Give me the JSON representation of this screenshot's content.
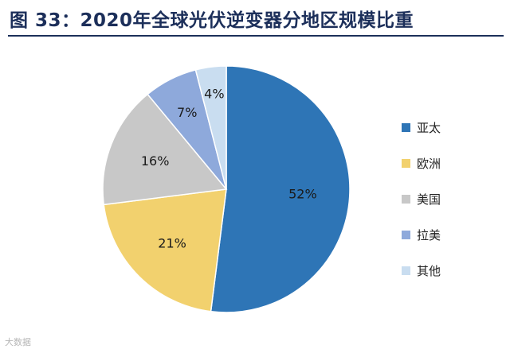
{
  "title": "图 33：2020年全球光伏逆变器分地区规模比重",
  "watermark": "大数据",
  "chart_data": {
    "type": "pie",
    "categories": [
      "亚太",
      "欧洲",
      "美国",
      "拉美",
      "其他"
    ],
    "values": [
      52,
      21,
      16,
      7,
      4
    ],
    "data_labels": [
      "52%",
      "21%",
      "16%",
      "7%",
      "4%"
    ],
    "colors": [
      "#2e75b6",
      "#f2d16e",
      "#c8c8c8",
      "#8ea9db",
      "#c9ddf0"
    ],
    "legend_position": "right",
    "start_angle": "12 o'clock",
    "direction": "clockwise"
  }
}
